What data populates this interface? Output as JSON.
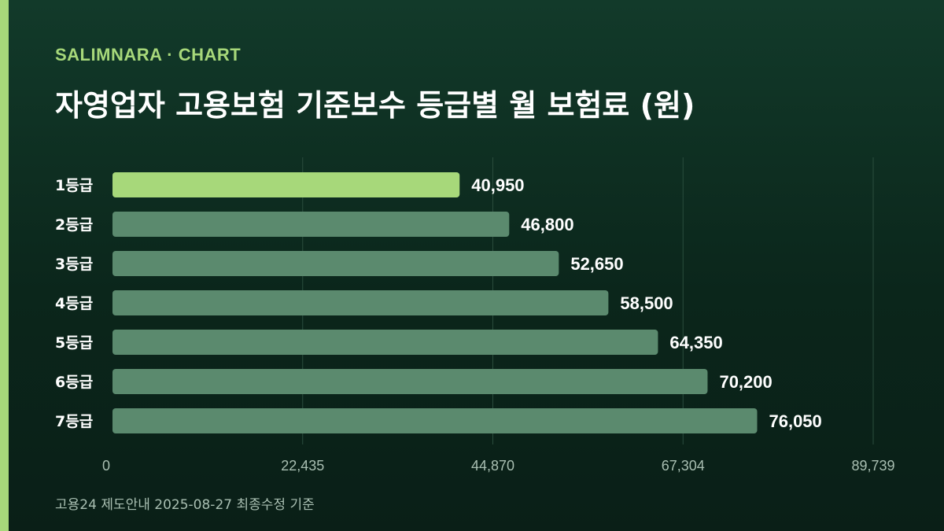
{
  "brand": "SALIMNARA · CHART",
  "title": "자영업자 고용보험 기준보수 등급별 월 보험료 (원)",
  "footnote": "고용24 제도안내 2025-08-27 최종수정 기준",
  "colors": {
    "accent": "#a7d87a",
    "bar": "#5b8a6e",
    "highlight": "#a7d87a"
  },
  "chart_data": {
    "type": "bar",
    "orientation": "horizontal",
    "categories": [
      "1등급",
      "2등급",
      "3등급",
      "4등급",
      "5등급",
      "6등급",
      "7등급"
    ],
    "values": [
      40950,
      46800,
      52650,
      58500,
      64350,
      70200,
      76050
    ],
    "value_labels": [
      "40,950",
      "46,800",
      "52,650",
      "58,500",
      "64,350",
      "70,200",
      "76,050"
    ],
    "highlight_index": 0,
    "xlim": [
      0,
      89739
    ],
    "x_ticks": [
      0,
      22435,
      44870,
      67304,
      89739
    ],
    "x_tick_labels": [
      "0",
      "22,435",
      "44,870",
      "67,304",
      "89,739"
    ],
    "grid": "vertical",
    "title": "자영업자 고용보험 기준보수 등급별 월 보험료 (원)",
    "xlabel": "",
    "ylabel": ""
  }
}
